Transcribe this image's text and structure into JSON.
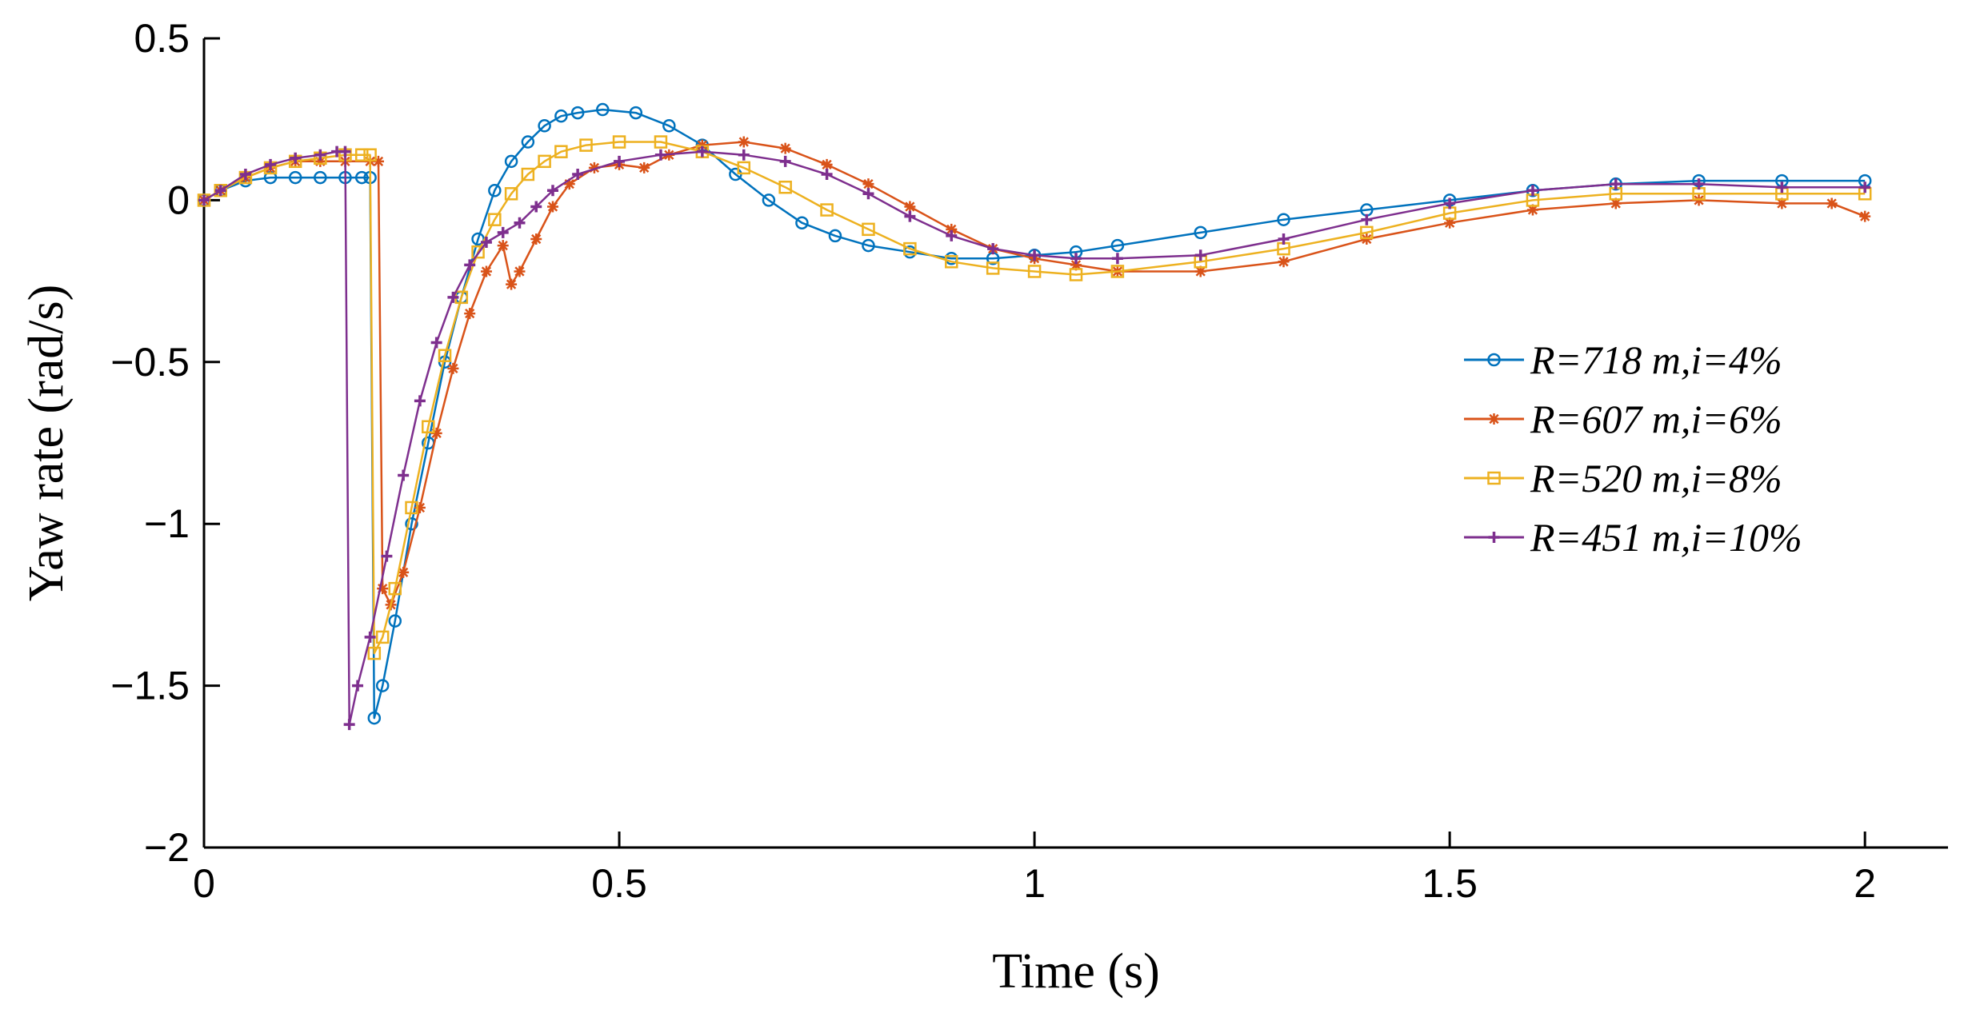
{
  "chart_data": {
    "type": "line",
    "title": "",
    "xlabel": "Time (s)",
    "ylabel": "Yaw rate (rad/s)",
    "xlim": [
      0,
      2.1
    ],
    "ylim": [
      -2,
      0.5
    ],
    "xticks": [
      0,
      0.5,
      1,
      1.5,
      2
    ],
    "xtick_labels": [
      "0",
      "0.5",
      "1",
      "1.5",
      "2"
    ],
    "yticks": [
      0.5,
      0,
      -0.5,
      -1,
      -1.5,
      -2
    ],
    "ytick_labels": [
      "0.5",
      "0",
      "−0.5",
      "−1",
      "−1.5",
      "−2"
    ],
    "grid": false,
    "legend_position": "right",
    "series": [
      {
        "name": "R=718 m,i=4%",
        "color": "#0072BD",
        "marker": "circle",
        "points": [
          [
            0,
            0
          ],
          [
            0.02,
            0.03
          ],
          [
            0.05,
            0.06
          ],
          [
            0.08,
            0.07
          ],
          [
            0.11,
            0.07
          ],
          [
            0.14,
            0.07
          ],
          [
            0.17,
            0.07
          ],
          [
            0.19,
            0.07
          ],
          [
            0.2,
            0.07
          ],
          [
            0.205,
            -1.6
          ],
          [
            0.215,
            -1.5
          ],
          [
            0.23,
            -1.3
          ],
          [
            0.25,
            -1.0
          ],
          [
            0.27,
            -0.75
          ],
          [
            0.29,
            -0.5
          ],
          [
            0.31,
            -0.3
          ],
          [
            0.33,
            -0.12
          ],
          [
            0.35,
            0.03
          ],
          [
            0.37,
            0.12
          ],
          [
            0.39,
            0.18
          ],
          [
            0.41,
            0.23
          ],
          [
            0.43,
            0.26
          ],
          [
            0.45,
            0.27
          ],
          [
            0.48,
            0.28
          ],
          [
            0.52,
            0.27
          ],
          [
            0.56,
            0.23
          ],
          [
            0.6,
            0.17
          ],
          [
            0.64,
            0.08
          ],
          [
            0.68,
            0.0
          ],
          [
            0.72,
            -0.07
          ],
          [
            0.76,
            -0.11
          ],
          [
            0.8,
            -0.14
          ],
          [
            0.85,
            -0.16
          ],
          [
            0.9,
            -0.18
          ],
          [
            0.95,
            -0.18
          ],
          [
            1.0,
            -0.17
          ],
          [
            1.05,
            -0.16
          ],
          [
            1.1,
            -0.14
          ],
          [
            1.2,
            -0.1
          ],
          [
            1.3,
            -0.06
          ],
          [
            1.4,
            -0.03
          ],
          [
            1.5,
            0.0
          ],
          [
            1.6,
            0.03
          ],
          [
            1.7,
            0.05
          ],
          [
            1.8,
            0.06
          ],
          [
            1.9,
            0.06
          ],
          [
            2.0,
            0.06
          ]
        ]
      },
      {
        "name": "R=607 m,i=6%",
        "color": "#D95319",
        "marker": "star",
        "points": [
          [
            0,
            0
          ],
          [
            0.02,
            0.03
          ],
          [
            0.05,
            0.07
          ],
          [
            0.08,
            0.1
          ],
          [
            0.11,
            0.12
          ],
          [
            0.14,
            0.12
          ],
          [
            0.17,
            0.12
          ],
          [
            0.2,
            0.12
          ],
          [
            0.21,
            0.12
          ],
          [
            0.215,
            -1.2
          ],
          [
            0.225,
            -1.25
          ],
          [
            0.24,
            -1.15
          ],
          [
            0.26,
            -0.95
          ],
          [
            0.28,
            -0.72
          ],
          [
            0.3,
            -0.52
          ],
          [
            0.32,
            -0.35
          ],
          [
            0.34,
            -0.22
          ],
          [
            0.36,
            -0.14
          ],
          [
            0.37,
            -0.26
          ],
          [
            0.38,
            -0.22
          ],
          [
            0.4,
            -0.12
          ],
          [
            0.42,
            -0.02
          ],
          [
            0.44,
            0.05
          ],
          [
            0.47,
            0.1
          ],
          [
            0.5,
            0.11
          ],
          [
            0.53,
            0.1
          ],
          [
            0.56,
            0.14
          ],
          [
            0.6,
            0.17
          ],
          [
            0.65,
            0.18
          ],
          [
            0.7,
            0.16
          ],
          [
            0.75,
            0.11
          ],
          [
            0.8,
            0.05
          ],
          [
            0.85,
            -0.02
          ],
          [
            0.9,
            -0.09
          ],
          [
            0.95,
            -0.15
          ],
          [
            1.0,
            -0.18
          ],
          [
            1.05,
            -0.2
          ],
          [
            1.1,
            -0.22
          ],
          [
            1.2,
            -0.22
          ],
          [
            1.3,
            -0.19
          ],
          [
            1.4,
            -0.12
          ],
          [
            1.5,
            -0.07
          ],
          [
            1.6,
            -0.03
          ],
          [
            1.7,
            -0.01
          ],
          [
            1.8,
            0.0
          ],
          [
            1.9,
            -0.01
          ],
          [
            1.96,
            -0.01
          ],
          [
            2.0,
            -0.05
          ]
        ]
      },
      {
        "name": "R=520 m,i=8%",
        "color": "#EDB120",
        "marker": "square",
        "points": [
          [
            0,
            0
          ],
          [
            0.02,
            0.03
          ],
          [
            0.05,
            0.07
          ],
          [
            0.08,
            0.1
          ],
          [
            0.11,
            0.12
          ],
          [
            0.14,
            0.13
          ],
          [
            0.17,
            0.14
          ],
          [
            0.19,
            0.14
          ],
          [
            0.2,
            0.14
          ],
          [
            0.205,
            -1.4
          ],
          [
            0.215,
            -1.35
          ],
          [
            0.23,
            -1.2
          ],
          [
            0.25,
            -0.95
          ],
          [
            0.27,
            -0.7
          ],
          [
            0.29,
            -0.48
          ],
          [
            0.31,
            -0.3
          ],
          [
            0.33,
            -0.16
          ],
          [
            0.35,
            -0.06
          ],
          [
            0.37,
            0.02
          ],
          [
            0.39,
            0.08
          ],
          [
            0.41,
            0.12
          ],
          [
            0.43,
            0.15
          ],
          [
            0.46,
            0.17
          ],
          [
            0.5,
            0.18
          ],
          [
            0.55,
            0.18
          ],
          [
            0.6,
            0.15
          ],
          [
            0.65,
            0.1
          ],
          [
            0.7,
            0.04
          ],
          [
            0.75,
            -0.03
          ],
          [
            0.8,
            -0.09
          ],
          [
            0.85,
            -0.15
          ],
          [
            0.9,
            -0.19
          ],
          [
            0.95,
            -0.21
          ],
          [
            1.0,
            -0.22
          ],
          [
            1.05,
            -0.23
          ],
          [
            1.1,
            -0.22
          ],
          [
            1.2,
            -0.19
          ],
          [
            1.3,
            -0.15
          ],
          [
            1.4,
            -0.1
          ],
          [
            1.5,
            -0.04
          ],
          [
            1.6,
            0.0
          ],
          [
            1.7,
            0.02
          ],
          [
            1.8,
            0.02
          ],
          [
            1.9,
            0.02
          ],
          [
            2.0,
            0.02
          ]
        ]
      },
      {
        "name": "R=451 m,i=10%",
        "color": "#7E2F8E",
        "marker": "plus",
        "points": [
          [
            0,
            0
          ],
          [
            0.02,
            0.03
          ],
          [
            0.05,
            0.08
          ],
          [
            0.08,
            0.11
          ],
          [
            0.11,
            0.13
          ],
          [
            0.14,
            0.14
          ],
          [
            0.16,
            0.15
          ],
          [
            0.17,
            0.15
          ],
          [
            0.175,
            -1.62
          ],
          [
            0.185,
            -1.5
          ],
          [
            0.2,
            -1.35
          ],
          [
            0.22,
            -1.1
          ],
          [
            0.24,
            -0.85
          ],
          [
            0.26,
            -0.62
          ],
          [
            0.28,
            -0.44
          ],
          [
            0.3,
            -0.3
          ],
          [
            0.32,
            -0.2
          ],
          [
            0.34,
            -0.13
          ],
          [
            0.36,
            -0.1
          ],
          [
            0.38,
            -0.07
          ],
          [
            0.4,
            -0.02
          ],
          [
            0.42,
            0.03
          ],
          [
            0.45,
            0.08
          ],
          [
            0.5,
            0.12
          ],
          [
            0.55,
            0.14
          ],
          [
            0.6,
            0.15
          ],
          [
            0.65,
            0.14
          ],
          [
            0.7,
            0.12
          ],
          [
            0.75,
            0.08
          ],
          [
            0.8,
            0.02
          ],
          [
            0.85,
            -0.05
          ],
          [
            0.9,
            -0.11
          ],
          [
            0.95,
            -0.15
          ],
          [
            1.0,
            -0.17
          ],
          [
            1.05,
            -0.18
          ],
          [
            1.1,
            -0.18
          ],
          [
            1.2,
            -0.17
          ],
          [
            1.3,
            -0.12
          ],
          [
            1.4,
            -0.06
          ],
          [
            1.5,
            -0.01
          ],
          [
            1.6,
            0.03
          ],
          [
            1.7,
            0.05
          ],
          [
            1.8,
            0.05
          ],
          [
            1.9,
            0.04
          ],
          [
            2.0,
            0.04
          ]
        ]
      }
    ]
  }
}
